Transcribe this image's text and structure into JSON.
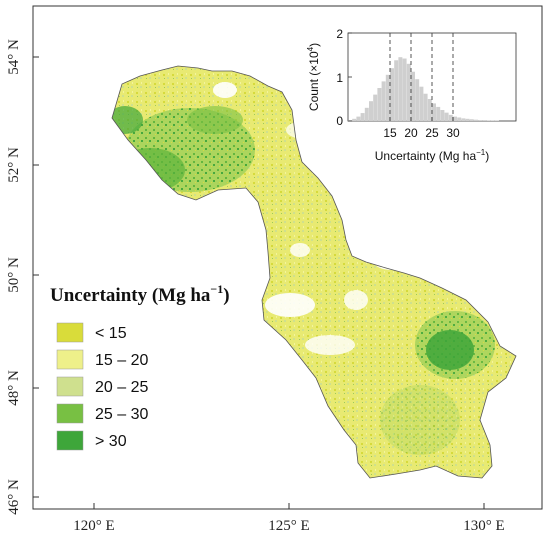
{
  "map": {
    "longitude_labels": [
      "120° E",
      "125° E",
      "130° E"
    ],
    "latitude_labels": [
      "54° N",
      "52° N",
      "50° N",
      "48° N",
      "46° N"
    ]
  },
  "legend": {
    "title_main": "Uncertainty (Mg ha",
    "title_sup": "−1",
    "title_close": ")",
    "items": [
      {
        "label": "< 15",
        "color": "#d9dc3a"
      },
      {
        "label": "15 – 20",
        "color": "#eef08a"
      },
      {
        "label": "20 – 25",
        "color": "#cfe08e"
      },
      {
        "label": "25 – 30",
        "color": "#78c043"
      },
      {
        "label": "> 30",
        "color": "#3ea63a"
      }
    ]
  },
  "inset": {
    "ylabel_main": "Count (×10",
    "ylabel_sup": "4",
    "ylabel_close": ")",
    "xlabel_main": "Uncertainty (Mg ha",
    "xlabel_sup": "−1",
    "xlabel_close": ")",
    "y_tick_labels": [
      "2",
      "1",
      "0"
    ],
    "x_tick_labels": [
      "15",
      "20",
      "25",
      "30"
    ],
    "histogram_color": "#cfcfcf"
  },
  "chart_data": {
    "type": "bar",
    "x": [
      5,
      6,
      7,
      8,
      9,
      10,
      11,
      12,
      13,
      14,
      15,
      16,
      17,
      18,
      19,
      20,
      21,
      22,
      23,
      24,
      25,
      26,
      27,
      28,
      29,
      30,
      31,
      32,
      33,
      34,
      35,
      36,
      37,
      38,
      39,
      40
    ],
    "values": [
      0.02,
      0.05,
      0.1,
      0.18,
      0.3,
      0.45,
      0.6,
      0.75,
      0.9,
      1.05,
      1.2,
      1.38,
      1.45,
      1.42,
      1.3,
      1.12,
      0.95,
      0.78,
      0.62,
      0.5,
      0.4,
      0.32,
      0.25,
      0.19,
      0.14,
      0.1,
      0.08,
      0.06,
      0.05,
      0.04,
      0.03,
      0.02,
      0.02,
      0.01,
      0.01,
      0.01
    ],
    "reference_lines": [
      15,
      20,
      25,
      30
    ],
    "xlabel": "Uncertainty (Mg ha−1)",
    "ylabel": "Count (×104)",
    "ylim": [
      0,
      2
    ]
  }
}
